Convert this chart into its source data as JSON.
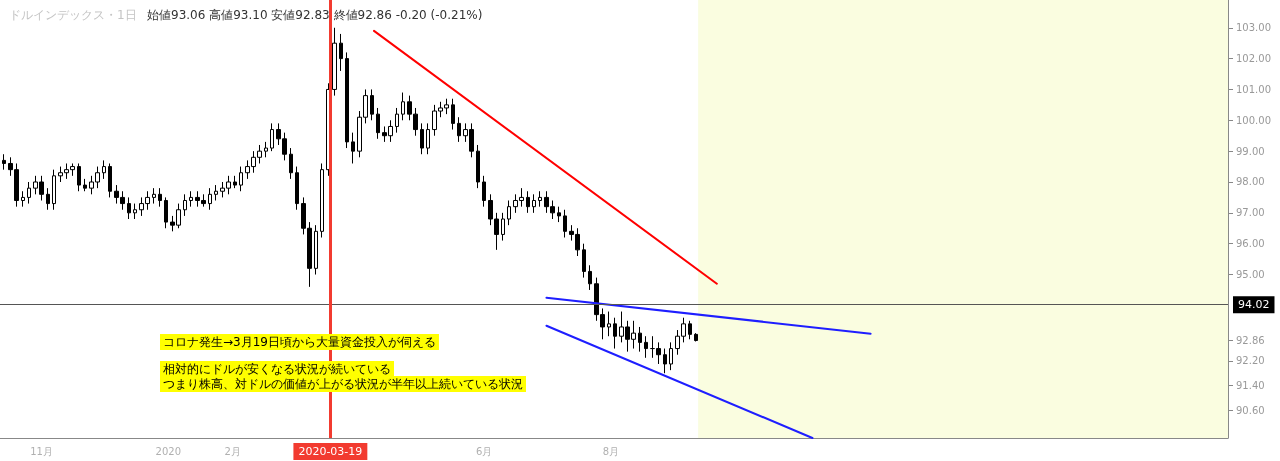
{
  "chart_data": {
    "type": "candlestick",
    "title": "ドルインデックス・1日",
    "subtitle": "始値93.06 高値93.10 安値92.83 終値92.86 -0.20 (-0.21%)",
    "color": "#000000",
    "x": [
      "2019-10-14",
      "2019-10-17",
      "2019-10-20",
      "2019-10-23",
      "2019-10-26",
      "2019-10-29",
      "2019-11-01",
      "2019-11-04",
      "2019-11-07",
      "2019-11-10",
      "2019-11-13",
      "2019-11-16",
      "2019-11-19",
      "2019-11-22",
      "2019-11-25",
      "2019-11-28",
      "2019-12-01",
      "2019-12-04",
      "2019-12-07",
      "2019-12-10",
      "2019-12-13",
      "2019-12-16",
      "2019-12-19",
      "2019-12-22",
      "2019-12-25",
      "2019-12-28",
      "2019-12-31",
      "2020-01-03",
      "2020-01-06",
      "2020-01-09",
      "2020-01-12",
      "2020-01-15",
      "2020-01-18",
      "2020-01-21",
      "2020-01-24",
      "2020-01-27",
      "2020-01-30",
      "2020-02-02",
      "2020-02-05",
      "2020-02-08",
      "2020-02-11",
      "2020-02-14",
      "2020-02-17",
      "2020-02-20",
      "2020-02-23",
      "2020-02-26",
      "2020-02-29",
      "2020-03-03",
      "2020-03-06",
      "2020-03-09",
      "2020-03-12",
      "2020-03-15",
      "2020-03-18",
      "2020-03-21",
      "2020-03-24",
      "2020-03-27",
      "2020-03-30",
      "2020-04-02",
      "2020-04-05",
      "2020-04-08",
      "2020-04-11",
      "2020-04-14",
      "2020-04-17",
      "2020-04-20",
      "2020-04-23",
      "2020-04-26",
      "2020-04-29",
      "2020-05-02",
      "2020-05-05",
      "2020-05-08",
      "2020-05-11",
      "2020-05-14",
      "2020-05-17",
      "2020-05-20",
      "2020-05-23",
      "2020-05-26",
      "2020-05-29",
      "2020-06-01",
      "2020-06-04",
      "2020-06-07",
      "2020-06-10",
      "2020-06-13",
      "2020-06-16",
      "2020-06-19",
      "2020-06-22",
      "2020-06-25",
      "2020-06-28",
      "2020-07-01",
      "2020-07-04",
      "2020-07-07",
      "2020-07-10",
      "2020-07-13",
      "2020-07-16",
      "2020-07-19",
      "2020-07-22",
      "2020-07-25",
      "2020-07-28",
      "2020-07-31",
      "2020-08-03",
      "2020-08-06",
      "2020-08-09",
      "2020-08-12",
      "2020-08-15",
      "2020-08-18",
      "2020-08-21",
      "2020-08-24",
      "2020-08-27",
      "2020-08-30",
      "2020-09-02",
      "2020-09-05",
      "2020-09-08",
      "2020-09-11"
    ],
    "ohlc": [
      [
        98.7,
        98.9,
        98.4,
        98.6
      ],
      [
        98.6,
        98.8,
        98.2,
        98.4
      ],
      [
        98.4,
        98.6,
        97.2,
        97.4
      ],
      [
        97.4,
        97.7,
        97.2,
        97.5
      ],
      [
        97.5,
        98.0,
        97.3,
        97.8
      ],
      [
        97.8,
        98.2,
        97.6,
        98.0
      ],
      [
        98.0,
        98.2,
        97.4,
        97.6
      ],
      [
        97.6,
        97.8,
        97.1,
        97.3
      ],
      [
        97.3,
        98.4,
        97.1,
        98.2
      ],
      [
        98.2,
        98.5,
        98.0,
        98.3
      ],
      [
        98.3,
        98.6,
        98.1,
        98.4
      ],
      [
        98.4,
        98.6,
        98.2,
        98.5
      ],
      [
        98.5,
        98.6,
        97.7,
        97.9
      ],
      [
        97.9,
        98.1,
        97.7,
        97.8
      ],
      [
        97.8,
        98.2,
        97.6,
        98.0
      ],
      [
        98.0,
        98.5,
        97.8,
        98.3
      ],
      [
        98.3,
        98.7,
        98.1,
        98.5
      ],
      [
        98.5,
        98.6,
        97.5,
        97.7
      ],
      [
        97.7,
        97.9,
        97.3,
        97.5
      ],
      [
        97.5,
        97.7,
        97.1,
        97.3
      ],
      [
        97.3,
        97.5,
        96.8,
        97.0
      ],
      [
        97.0,
        97.3,
        96.8,
        97.1
      ],
      [
        97.1,
        97.5,
        96.9,
        97.3
      ],
      [
        97.3,
        97.7,
        97.1,
        97.5
      ],
      [
        97.5,
        97.8,
        97.3,
        97.6
      ],
      [
        97.6,
        97.8,
        97.2,
        97.4
      ],
      [
        97.4,
        97.5,
        96.5,
        96.7
      ],
      [
        96.7,
        96.9,
        96.4,
        96.6
      ],
      [
        96.6,
        97.3,
        96.5,
        97.1
      ],
      [
        97.1,
        97.6,
        96.9,
        97.4
      ],
      [
        97.4,
        97.7,
        97.2,
        97.5
      ],
      [
        97.5,
        97.7,
        97.2,
        97.4
      ],
      [
        97.4,
        97.6,
        97.2,
        97.3
      ],
      [
        97.3,
        97.8,
        97.1,
        97.6
      ],
      [
        97.6,
        97.9,
        97.4,
        97.7
      ],
      [
        97.7,
        98.0,
        97.5,
        97.8
      ],
      [
        97.8,
        98.2,
        97.6,
        98.0
      ],
      [
        98.0,
        98.2,
        97.8,
        97.9
      ],
      [
        97.9,
        98.5,
        97.7,
        98.3
      ],
      [
        98.3,
        98.7,
        98.1,
        98.5
      ],
      [
        98.5,
        99.0,
        98.3,
        98.8
      ],
      [
        98.8,
        99.2,
        98.6,
        99.0
      ],
      [
        99.0,
        99.3,
        98.8,
        99.1
      ],
      [
        99.1,
        99.9,
        99.0,
        99.7
      ],
      [
        99.7,
        99.9,
        99.2,
        99.4
      ],
      [
        99.4,
        99.6,
        98.7,
        98.9
      ],
      [
        98.9,
        99.1,
        98.1,
        98.3
      ],
      [
        98.3,
        98.5,
        97.1,
        97.3
      ],
      [
        97.3,
        97.5,
        96.3,
        96.5
      ],
      [
        96.5,
        96.7,
        94.6,
        95.2
      ],
      [
        95.2,
        96.6,
        95.0,
        96.4
      ],
      [
        96.4,
        98.6,
        96.2,
        98.4
      ],
      [
        98.4,
        101.2,
        98.2,
        101.0
      ],
      [
        101.0,
        103.0,
        100.8,
        102.5
      ],
      [
        102.5,
        102.8,
        101.6,
        102.0
      ],
      [
        102.0,
        102.2,
        99.1,
        99.3
      ],
      [
        99.3,
        99.6,
        98.6,
        99.0
      ],
      [
        99.0,
        100.3,
        98.8,
        100.1
      ],
      [
        100.1,
        101.0,
        99.9,
        100.8
      ],
      [
        100.8,
        101.0,
        100.0,
        100.2
      ],
      [
        100.2,
        100.4,
        99.4,
        99.6
      ],
      [
        99.6,
        99.8,
        99.3,
        99.5
      ],
      [
        99.5,
        100.0,
        99.3,
        99.8
      ],
      [
        99.8,
        100.4,
        99.6,
        100.2
      ],
      [
        100.2,
        100.9,
        100.0,
        100.6
      ],
      [
        100.6,
        100.8,
        100.0,
        100.2
      ],
      [
        100.2,
        100.4,
        99.5,
        99.7
      ],
      [
        99.7,
        99.9,
        98.9,
        99.1
      ],
      [
        99.1,
        99.9,
        98.9,
        99.7
      ],
      [
        99.7,
        100.5,
        99.5,
        100.3
      ],
      [
        100.3,
        100.6,
        100.1,
        100.4
      ],
      [
        100.4,
        100.7,
        100.2,
        100.5
      ],
      [
        100.5,
        100.7,
        99.7,
        99.9
      ],
      [
        99.9,
        100.1,
        99.3,
        99.5
      ],
      [
        99.5,
        99.9,
        99.3,
        99.7
      ],
      [
        99.7,
        99.9,
        98.8,
        99.0
      ],
      [
        99.0,
        99.2,
        97.8,
        98.0
      ],
      [
        98.0,
        98.2,
        97.2,
        97.4
      ],
      [
        97.4,
        97.6,
        96.6,
        96.8
      ],
      [
        96.8,
        97.0,
        95.8,
        96.3
      ],
      [
        96.3,
        97.0,
        96.1,
        96.8
      ],
      [
        96.8,
        97.4,
        96.6,
        97.2
      ],
      [
        97.2,
        97.6,
        97.0,
        97.4
      ],
      [
        97.4,
        97.8,
        97.2,
        97.5
      ],
      [
        97.5,
        97.7,
        97.0,
        97.2
      ],
      [
        97.2,
        97.6,
        97.0,
        97.4
      ],
      [
        97.4,
        97.7,
        97.2,
        97.5
      ],
      [
        97.5,
        97.7,
        97.0,
        97.2
      ],
      [
        97.2,
        97.4,
        96.8,
        97.0
      ],
      [
        97.0,
        97.2,
        96.7,
        96.9
      ],
      [
        96.9,
        97.1,
        96.2,
        96.4
      ],
      [
        96.4,
        96.6,
        96.1,
        96.3
      ],
      [
        96.3,
        96.5,
        95.6,
        95.8
      ],
      [
        95.8,
        96.0,
        94.9,
        95.1
      ],
      [
        95.1,
        95.3,
        94.5,
        94.7
      ],
      [
        94.7,
        94.9,
        93.5,
        93.7
      ],
      [
        93.7,
        93.9,
        92.9,
        93.3
      ],
      [
        93.3,
        93.8,
        93.0,
        93.4
      ],
      [
        93.4,
        93.6,
        92.6,
        93.0
      ],
      [
        93.0,
        93.8,
        92.8,
        93.3
      ],
      [
        93.3,
        93.5,
        92.5,
        92.9
      ],
      [
        92.9,
        93.5,
        92.6,
        93.1
      ],
      [
        93.1,
        93.3,
        92.5,
        92.8
      ],
      [
        92.8,
        93.0,
        92.3,
        92.6
      ],
      [
        92.6,
        93.0,
        92.3,
        92.6
      ],
      [
        92.6,
        92.8,
        92.1,
        92.4
      ],
      [
        92.4,
        92.6,
        91.8,
        92.1
      ],
      [
        92.1,
        92.8,
        91.9,
        92.6
      ],
      [
        92.6,
        93.2,
        92.4,
        93.0
      ],
      [
        93.0,
        93.6,
        92.8,
        93.4
      ],
      [
        93.4,
        93.5,
        92.9,
        93.06
      ],
      [
        93.06,
        93.1,
        92.83,
        92.86
      ]
    ],
    "series": [
      {
        "type": "line",
        "color": "#ff0000",
        "x": [
          "2020-04-09",
          "2020-09-21"
        ],
        "values": [
          102.9,
          94.7
        ]
      },
      {
        "type": "line",
        "color": "#1e1eff",
        "x": [
          "2020-07-01",
          "2020-12-04"
        ],
        "values": [
          94.25,
          93.08
        ]
      },
      {
        "type": "line",
        "color": "#1e1eff",
        "x": [
          "2020-07-01",
          "2020-11-06"
        ],
        "values": [
          93.34,
          89.7
        ]
      }
    ],
    "xlim": [
      "2019-10-12",
      "2021-05-25"
    ],
    "xticks": [
      {
        "value": "2019-11-01",
        "label": "11月"
      },
      {
        "value": "2020-01-01",
        "label": "2020"
      },
      {
        "value": "2020-02-01",
        "label": "2月"
      },
      {
        "value": "2020-06-01",
        "label": "6月"
      },
      {
        "value": "2020-08-01",
        "label": "8月"
      }
    ],
    "ylim": [
      89.7,
      103.9
    ],
    "yticks": [
      {
        "value": 90.6,
        "label": "90.60"
      },
      {
        "value": 91.4,
        "label": "91.40"
      },
      {
        "value": 92.2,
        "label": "92.20"
      },
      {
        "value": 92.86,
        "label": "92.86"
      },
      {
        "value": 95,
        "label": "95.00"
      },
      {
        "value": 96,
        "label": "96.00"
      },
      {
        "value": 97,
        "label": "97.00"
      },
      {
        "value": 98,
        "label": "98.00"
      },
      {
        "value": 99,
        "label": "99.00"
      },
      {
        "value": 100,
        "label": "100.00"
      },
      {
        "value": 101,
        "label": "101.00"
      },
      {
        "value": 102,
        "label": "102.00"
      },
      {
        "value": 103,
        "label": "103.00"
      }
    ],
    "ref_lines": [
      {
        "axis": "y",
        "value": 94.02,
        "label": "94.02",
        "color": "#555555"
      },
      {
        "axis": "x",
        "value": "2020-03-19",
        "label": "2020-03-19",
        "color": "#f23b30"
      }
    ],
    "bands": [
      {
        "axis": "x",
        "from": "2020-09-12",
        "to": "2021-05-25",
        "color": "#fafde0"
      }
    ],
    "annotations": [
      "コロナ発生→3月19日頃から大量資金投入が伺える",
      "相対的にドルが安くなる状況が続いている",
      "つまり株高、対ドルの価値が上がる状況が半年以上続いている状況"
    ]
  }
}
